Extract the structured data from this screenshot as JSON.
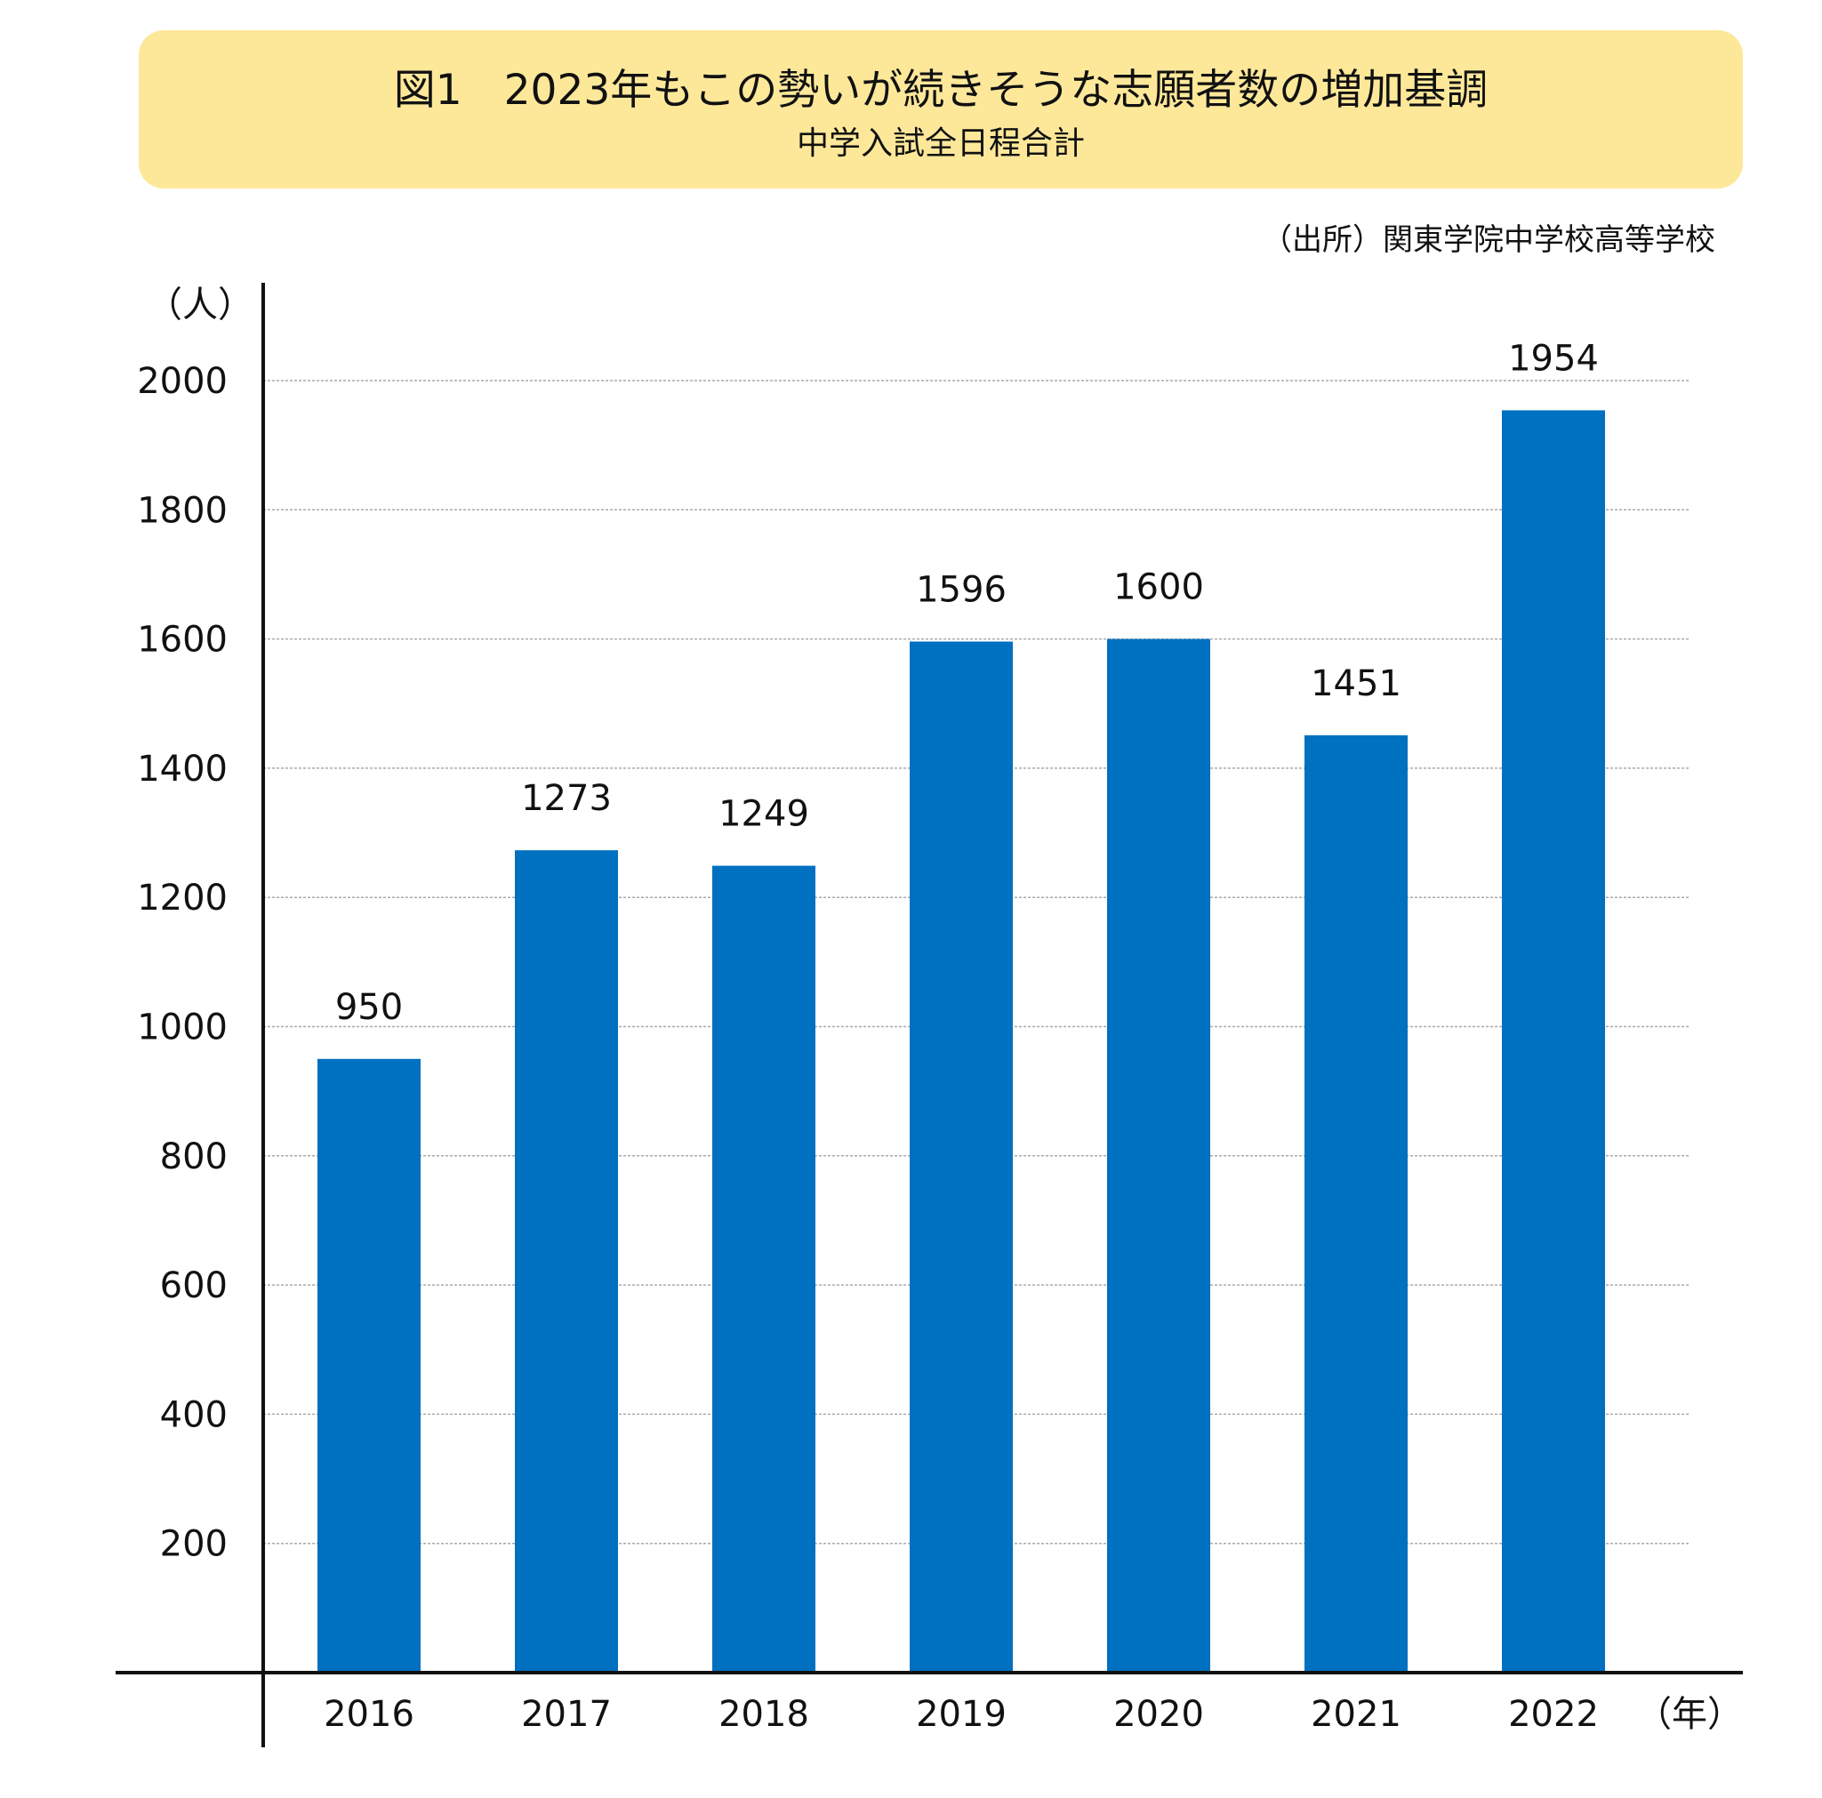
{
  "title": {
    "main": "図1　2023年もこの勢いが続きそうな志願者数の増加基調",
    "sub": "中学入試全日程合計"
  },
  "source": "（出所）関東学院中学校高等学校",
  "colors": {
    "bar": "#0070c0",
    "title_bg": "#fde89a",
    "grid": "#aaaaaa"
  },
  "chart_data": {
    "type": "bar",
    "categories": [
      "2016",
      "2017",
      "2018",
      "2019",
      "2020",
      "2021",
      "2022"
    ],
    "values": [
      950,
      1273,
      1249,
      1596,
      1600,
      1451,
      1954
    ],
    "data_labels": [
      "950",
      "1273",
      "1249",
      "1596",
      "1600",
      "1451",
      "1954"
    ],
    "ylabel": "（人）",
    "xlabel": "（年）",
    "ylim": [
      0,
      2000
    ],
    "yticks": [
      200,
      400,
      600,
      800,
      1000,
      1200,
      1400,
      1600,
      1800,
      2000
    ],
    "grid": true,
    "legend": false
  }
}
